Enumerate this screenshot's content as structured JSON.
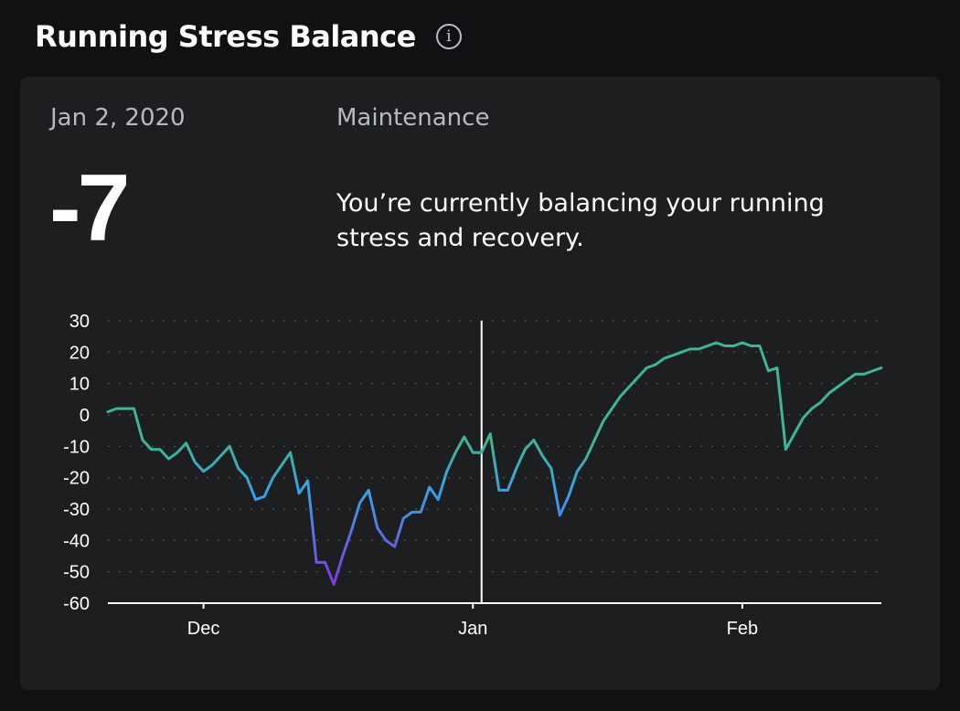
{
  "header": {
    "title": "Running Stress Balance",
    "info_icon": "info-icon"
  },
  "summary": {
    "date": "Jan 2, 2020",
    "status": "Maintenance",
    "value": "-7",
    "description": "You’re currently balancing your running stress and recovery."
  },
  "colors": {
    "background": "#101112",
    "card": "#1d1e20",
    "gradient_high": "#3fb592",
    "gradient_mid": "#3aa0e6",
    "gradient_low": "#7a3fe0"
  },
  "chart_data": {
    "type": "line",
    "title": "",
    "xlabel": "",
    "ylabel": "",
    "ylim": [
      -60,
      30
    ],
    "yticks": [
      30,
      20,
      10,
      0,
      -10,
      -20,
      -30,
      -40,
      -50,
      -60
    ],
    "ytick_labels": [
      "30",
      "20",
      "10",
      "0",
      "-10",
      "-20",
      "-30",
      "-40",
      "-50",
      "-60"
    ],
    "x_start": "Nov 20, 2019",
    "xticks": [
      {
        "label": "Dec",
        "date": "Dec 1, 2019"
      },
      {
        "label": "Jan",
        "date": "Jan 1, 2020"
      },
      {
        "label": "Feb",
        "date": "Feb 1, 2020"
      }
    ],
    "grid": "dotted horizontal",
    "cursor": {
      "date": "Jan 2, 2020",
      "value": -7
    },
    "series": [
      {
        "values": [
          1,
          2,
          2,
          2,
          -8,
          -11,
          -11,
          -14,
          -12,
          -9,
          -15,
          -18,
          -16,
          -13,
          -10,
          -17,
          -20,
          -27,
          -26,
          -20,
          -16,
          -12,
          -25,
          -21,
          -47,
          -47,
          -54,
          -45,
          -37,
          -28,
          -24,
          -36,
          -40,
          -42,
          -33,
          -31,
          -31,
          -23,
          -27,
          -18,
          -12,
          -7,
          -12,
          -12,
          -6,
          -24,
          -24,
          -17,
          -11,
          -8,
          -13,
          -17,
          -32,
          -26,
          -18,
          -14,
          -8,
          -2,
          2,
          6,
          9,
          12,
          15,
          16,
          18,
          19,
          20,
          21,
          21,
          22,
          23,
          22,
          22,
          23,
          22,
          22,
          14,
          15,
          -11,
          -6,
          -1,
          2,
          4,
          7,
          9,
          11,
          13,
          13,
          14,
          15
        ]
      }
    ]
  }
}
